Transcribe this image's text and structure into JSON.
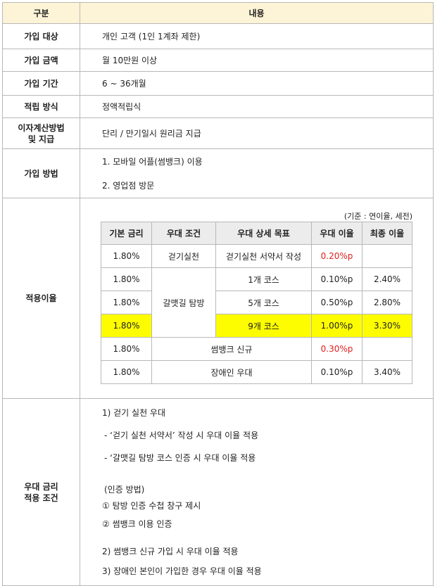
{
  "header": {
    "col1": "구분",
    "col2": "내용"
  },
  "rows": {
    "target": {
      "label": "가입 대상",
      "value": "개인 고객 (1인 1계좌 제한)"
    },
    "amount": {
      "label": "가입 금액",
      "value": "월 10만원 이상"
    },
    "period": {
      "label": "가입 기간",
      "value": "6 ~ 36개월"
    },
    "method_save": {
      "label": "적립 방식",
      "value": "정액적립식"
    },
    "interest_calc": {
      "label_line1": "이자계산방법",
      "label_line2": "및 지급",
      "value": "단리 / 만기일시 원리금 지급"
    },
    "join_method": {
      "label": "가입 방법",
      "items": [
        "1.  모바일 어플(썸뱅크) 이용",
        "2.  영업점 방문"
      ]
    },
    "rates": {
      "label": "적용이율",
      "basis_note": "(기준 : 연이율, 세전)",
      "headers": [
        "기본 금리",
        "우대 조건",
        "우대 상세 목표",
        "우대 이율",
        "최종 이율"
      ],
      "cells": {
        "r1": {
          "base": "1.80%",
          "cond": "걷기실천",
          "detail": "걷기실천 서약서 작성",
          "pref": "0.20%p",
          "final": ""
        },
        "r2": {
          "base": "1.80%",
          "detail": "1개 코스",
          "pref": "0.10%p",
          "final": "2.40%"
        },
        "r3": {
          "base": "1.80%",
          "cond": "갈맷길 탐방",
          "detail": "5개 코스",
          "pref": "0.50%p",
          "final": "2.80%"
        },
        "r4": {
          "base": "1.80%",
          "detail": "9개 코스",
          "pref": "1.00%p",
          "final": "3.30%"
        },
        "r5": {
          "base": "1.80%",
          "cond": "썸뱅크 신규",
          "pref": "0.30%p",
          "final": ""
        },
        "r6": {
          "base": "1.80%",
          "cond": "장애인 우대",
          "pref": "0.10%p",
          "final": "3.40%"
        }
      },
      "colors": {
        "highlight": "#fdfd00",
        "red_text": "#e02020",
        "header_bg": "#ececec"
      }
    },
    "conditions": {
      "label_line1": "우대 금리",
      "label_line2": "적용 조건",
      "lines": [
        "1) 걷기 실천 우대",
        "- ‘걷기 실천 서약서’ 작성 시 우대 이율 적용",
        "- ‘갈맷길 탐방 코스 인증 시 우대 이율 적용",
        "(인증 방법)",
        "① 탐방 인증 수첩 창구 제시",
        "② 썸뱅크 이용 인증",
        "2) 썸뱅크 신규 가입 시 우대 이율 적용",
        "3) 장애인 본인이 가입한 경우 우대 이율 적용"
      ]
    }
  },
  "colors": {
    "header_bg": "#fdf3d6",
    "border": "#b8b8b8"
  }
}
